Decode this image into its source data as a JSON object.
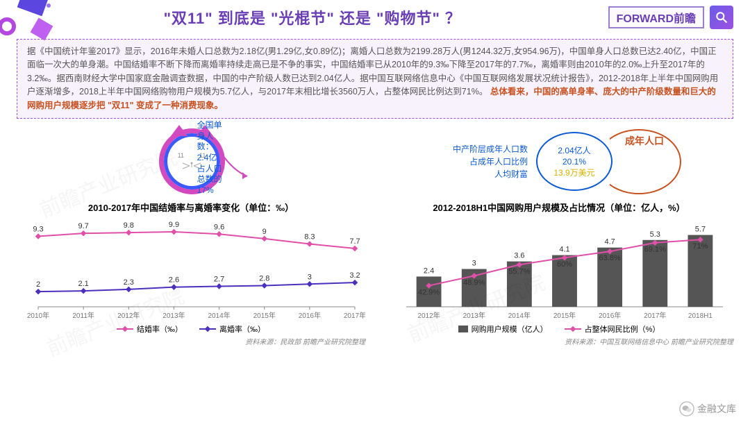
{
  "header": {
    "title": "\"双11\" 到底是 \"光棍节\" 还是 \"购物节\" ？",
    "brand": "FORWARD前瞻",
    "search_icon": "search-icon"
  },
  "info_box": {
    "body": "据《中国统计年鉴2017》显示，2016年未婚人口总数为2.18亿(男1.29亿,女0.89亿)；离婚人口总数为2199.28万人(男1244.32万,女954.96万)，中国单身人口总数已达2.40亿，中国正面临一次大的单身潮。中国结婚率不断下降而离婚率持续走高已是不争的事实，中国结婚率已从2010年的9.3‰下降至2017年的7.7‰，离婚率则由2010年的2.0‰上升至2017年的3.2‰。据西南财经大学中国家庭金融调查数据，中国的中产阶级人数已达到2.04亿人。据中国互联网络信息中心《中国互联网络发展状况统计报告》，2012-2018年上半年中国网购用户逐渐增多，2018上半年中国网络购物用户规模为5.7亿人，与2017年末相比增长3560万人，占整体网民比例达到71%。",
    "highlight": "总体看来，中国的高单身率、庞大的中产阶级数量和巨大的网购用户规模逐步把 \"双11\" 变成了一种消费现象。"
  },
  "cat_block": {
    "ring_color_outer": "#d34ac0",
    "ring_color_inner": "#3a5cff",
    "eye_text": "11",
    "label_l1": "全国单身人数：2.4亿",
    "label_l2": "占人口总数的17%",
    "label_color": "#0b5ad6"
  },
  "mid_class_block": {
    "lines": [
      "中产阶层成年人口数",
      "占成年人口比例",
      "人均财富"
    ],
    "text_color": "#0b5ad6",
    "bubble_lines": [
      "2.04亿人",
      "20.1%",
      "13.9万美元"
    ],
    "bubble_color": "#0b5ad6",
    "bubble_value_color": "#d8b100",
    "out_circle_label": "成年人口",
    "out_color": "#c8521f"
  },
  "chart_left": {
    "title": "2010-2017年中国结婚率与离婚率变化（单位：‰）",
    "years": [
      "2010年",
      "2011年",
      "2012年",
      "2013年",
      "2014年",
      "2015年",
      "2016年",
      "2017年"
    ],
    "series1": {
      "name": "结婚率（‰）",
      "color": "#e04fa8",
      "values": [
        9.3,
        9.7,
        9.8,
        9.9,
        9.6,
        9.0,
        8.3,
        7.7
      ]
    },
    "series2": {
      "name": "离婚率（‰）",
      "color": "#4b2fbf",
      "values": [
        2.0,
        2.1,
        2.3,
        2.6,
        2.7,
        2.8,
        3.0,
        3.2
      ]
    },
    "ylim": [
      0,
      11
    ],
    "src": "资料来源：民政部 前瞻产业研究院整理"
  },
  "chart_right": {
    "title": "2012-2018H1中国网购用户规模及占比情况（单位：亿人，%）",
    "years": [
      "2012年",
      "2013年",
      "2014年",
      "2015年",
      "2016年",
      "2017年",
      "2018H1"
    ],
    "bars": {
      "name": "网购用户规模（亿人）",
      "color": "#555555",
      "values": [
        2.4,
        3.0,
        3.6,
        4.1,
        4.7,
        5.3,
        5.7
      ],
      "ylim": [
        0,
        6.5
      ]
    },
    "line": {
      "name": "占整体网民比例（%）",
      "color": "#e04fa8",
      "values": [
        42.9,
        48.9,
        55.7,
        60.0,
        63.8,
        69.1,
        71.0
      ],
      "ylim": [
        30,
        80
      ]
    },
    "src": "资料来源：中国互联网络信息中心 前瞻产业研究院整理"
  },
  "watermarks": [
    "前瞻产业研究院",
    "前瞻产业研究院",
    "前瞻产业研究院"
  ],
  "footer_logo": "金融文库"
}
